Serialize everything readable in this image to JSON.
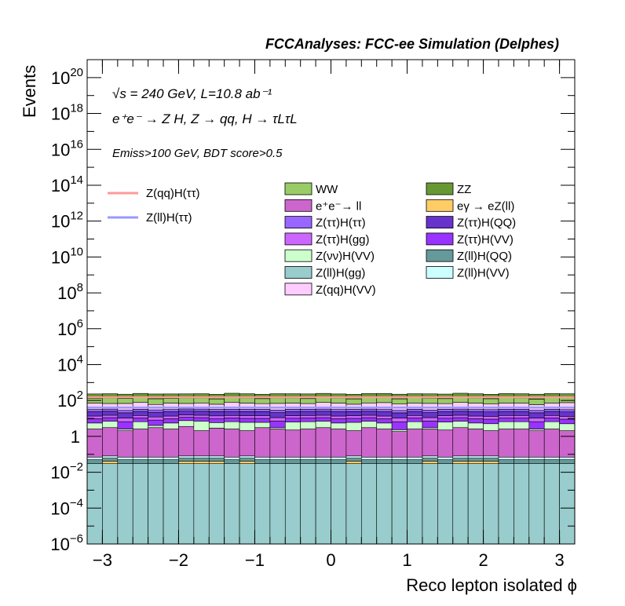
{
  "chart_data": {
    "type": "bar",
    "header": "FCCAnalyses: FCC-ee Simulation (Delphes)",
    "xlabel": "Reco lepton isolated ϕ",
    "ylabel": "Events",
    "xlim": [
      -3.2,
      3.2
    ],
    "ylim": [
      1e-06,
      1e+21
    ],
    "log_y": true,
    "grid": false,
    "x_ticks": [
      "−3",
      "−2",
      "−1",
      "0",
      "1",
      "2",
      "3"
    ],
    "x_tick_values": [
      -3,
      -2,
      -1,
      0,
      1,
      2,
      3
    ],
    "y_ticks": [
      "10^-6",
      "10^-4",
      "10^-2",
      "1",
      "10^2",
      "10^4",
      "10^6",
      "10^8",
      "10^10",
      "10^12",
      "10^14",
      "10^16",
      "10^18",
      "10^20"
    ],
    "annotations": {
      "energy": "√s = 240 GeV, L=10.8 ab⁻¹",
      "process": "e⁺e⁻ → Z H, Z → qq, H → τLτL",
      "selection": "Emiss>100 GeV, BDT score>0.5"
    },
    "bins": 32,
    "stacked_series": [
      {
        "name": "Z(ll)H(gg)",
        "color": "#99cccc",
        "values": [
          0.03,
          0.03,
          0.03,
          0.03,
          0.03,
          0.03,
          0.03,
          0.03,
          0.03,
          0.03,
          0.03,
          0.03,
          0.03,
          0.03,
          0.03,
          0.03,
          0.03,
          0.03,
          0.03,
          0.03,
          0.03,
          0.03,
          0.03,
          0.03,
          0.03,
          0.03,
          0.03,
          0.03,
          0.03,
          0.03,
          0.03,
          0.03
        ]
      },
      {
        "name": "eγ → eZ(ll)",
        "color": "#ffcc66",
        "values": [
          0,
          0.011,
          0,
          0,
          0,
          0,
          0.011,
          0.011,
          0.011,
          0,
          0.011,
          0,
          0,
          0,
          0,
          0,
          0,
          0.011,
          0,
          0,
          0,
          0,
          0.011,
          0,
          0.011,
          0.011,
          0.011,
          0,
          0,
          0,
          0,
          0
        ]
      },
      {
        "name": "Z(ll)H(QQ)",
        "color": "#669999",
        "values": [
          0.02,
          0.02,
          0.02,
          0.02,
          0.02,
          0.02,
          0.02,
          0.02,
          0.02,
          0.02,
          0.02,
          0.02,
          0.02,
          0.02,
          0.02,
          0.02,
          0.02,
          0.02,
          0.02,
          0.02,
          0.02,
          0.02,
          0.02,
          0.02,
          0.02,
          0.02,
          0.02,
          0.02,
          0.02,
          0.02,
          0.02,
          0.02
        ]
      },
      {
        "name": "Z(ll)H(VV)",
        "color": "#ccffff",
        "values": [
          0.02,
          0.02,
          0.02,
          0.02,
          0.02,
          0.02,
          0.02,
          0.02,
          0.02,
          0.02,
          0.02,
          0.02,
          0.02,
          0.02,
          0.02,
          0.02,
          0.02,
          0.02,
          0.02,
          0.02,
          0.02,
          0.02,
          0.02,
          0.02,
          0.02,
          0.02,
          0.02,
          0.02,
          0.02,
          0.02,
          0.02,
          0.02
        ]
      },
      {
        "name": "e⁺e⁻→ ll",
        "color": "#cc66cc",
        "values": [
          2.5,
          3.0,
          2.0,
          2.5,
          3.0,
          2.5,
          3.5,
          2.0,
          2.8,
          2.5,
          2.0,
          3.0,
          2.5,
          2.2,
          2.5,
          3.0,
          2.5,
          2.0,
          3.0,
          2.5,
          1.8,
          2.5,
          2.5,
          2.2,
          3.0,
          2.5,
          2.0,
          2.5,
          2.5,
          2.0,
          2.5,
          2.0
        ]
      },
      {
        "name": "Z(νν)H(VV)",
        "color": "#ccffcc",
        "values": [
          3,
          4,
          0.5,
          4,
          1,
          3,
          4,
          5,
          3,
          4,
          4,
          3,
          0.5,
          4,
          4,
          4,
          3,
          4,
          4,
          3,
          0.5,
          4,
          0.5,
          4,
          4,
          3,
          3,
          4,
          4,
          0.5,
          4,
          3
        ]
      },
      {
        "name": "Z(ττ)H(VV)",
        "color": "#9933ff",
        "values": [
          4,
          4,
          4,
          4,
          4,
          4,
          4,
          4,
          4,
          4,
          4,
          4,
          4,
          4,
          4,
          4,
          4,
          4,
          4,
          4,
          4,
          4,
          4,
          4,
          4,
          4,
          4,
          4,
          4,
          4,
          4,
          4
        ]
      },
      {
        "name": "Z(ττ)H(gg)",
        "color": "#cc66ff",
        "values": [
          4,
          4,
          4,
          4,
          4,
          4,
          4,
          4,
          4,
          4,
          4,
          4,
          4,
          4,
          4,
          4,
          4,
          4,
          4,
          4,
          4,
          4,
          4,
          4,
          4,
          4,
          4,
          4,
          4,
          4,
          4,
          4
        ]
      },
      {
        "name": "Z(ττ)H(QQ)",
        "color": "#6633cc",
        "values": [
          10,
          10,
          10,
          10,
          10,
          10,
          10,
          10,
          10,
          10,
          10,
          10,
          10,
          10,
          10,
          10,
          10,
          10,
          10,
          10,
          10,
          10,
          10,
          10,
          10,
          10,
          10,
          10,
          10,
          10,
          10,
          10
        ]
      },
      {
        "name": "Z(ττ)H(ττ)",
        "color": "#9966ff",
        "values": [
          8,
          8,
          8,
          8,
          8,
          8,
          8,
          8,
          8,
          8,
          8,
          8,
          8,
          8,
          8,
          8,
          8,
          8,
          8,
          8,
          8,
          8,
          8,
          8,
          8,
          8,
          8,
          8,
          8,
          8,
          8,
          8
        ]
      },
      {
        "name": "Z(qq)H(VV)",
        "color": "#ffccff",
        "values": [
          40,
          35,
          40,
          45,
          30,
          40,
          35,
          40,
          30,
          45,
          40,
          35,
          40,
          40,
          35,
          45,
          40,
          30,
          40,
          45,
          35,
          40,
          40,
          35,
          45,
          40,
          35,
          40,
          40,
          30,
          40,
          45
        ]
      },
      {
        "name": "WW",
        "color": "#99cc66",
        "values": [
          60,
          70,
          60,
          70,
          65,
          60,
          70,
          65,
          60,
          70,
          65,
          60,
          70,
          65,
          60,
          70,
          65,
          60,
          70,
          65,
          60,
          70,
          65,
          60,
          70,
          65,
          60,
          70,
          65,
          60,
          70,
          65
        ]
      },
      {
        "name": "ZZ",
        "color": "#669933",
        "values": [
          100,
          100,
          95,
          100,
          105,
          100,
          95,
          100,
          100,
          105,
          100,
          95,
          100,
          100,
          105,
          100,
          95,
          100,
          100,
          105,
          100,
          95,
          100,
          100,
          105,
          100,
          95,
          100,
          100,
          105,
          100,
          95
        ]
      }
    ],
    "signal_series": [
      {
        "name": "Z(qq)H(ττ)",
        "color": "#ff9999",
        "values": [
          150,
          150,
          150,
          150,
          150,
          150,
          150,
          150,
          150,
          150,
          150,
          150,
          150,
          150,
          150,
          150,
          150,
          150,
          150,
          150,
          150,
          150,
          150,
          150,
          150,
          150,
          150,
          150,
          150,
          150,
          150,
          150
        ]
      },
      {
        "name": "Z(ll)H(ττ)",
        "color": "#9999ff",
        "values": [
          40,
          40,
          40,
          40,
          40,
          40,
          40,
          40,
          40,
          40,
          40,
          40,
          40,
          40,
          40,
          40,
          40,
          40,
          40,
          40,
          40,
          40,
          40,
          40,
          40,
          40,
          40,
          40,
          40,
          40,
          40,
          40
        ]
      }
    ],
    "legend_left": [
      "Z(qq)H(ττ)",
      "Z(ll)H(ττ)"
    ],
    "legend_grid": [
      [
        "WW",
        "ZZ"
      ],
      [
        "e⁺e⁻→ ll",
        "eγ → eZ(ll)"
      ],
      [
        "Z(ττ)H(ττ)",
        "Z(ττ)H(QQ)"
      ],
      [
        "Z(ττ)H(gg)",
        "Z(ττ)H(VV)"
      ],
      [
        "Z(νν)H(VV)",
        "Z(ll)H(QQ)"
      ],
      [
        "Z(ll)H(gg)",
        "Z(ll)H(VV)"
      ],
      [
        "Z(qq)H(VV)",
        ""
      ]
    ]
  }
}
